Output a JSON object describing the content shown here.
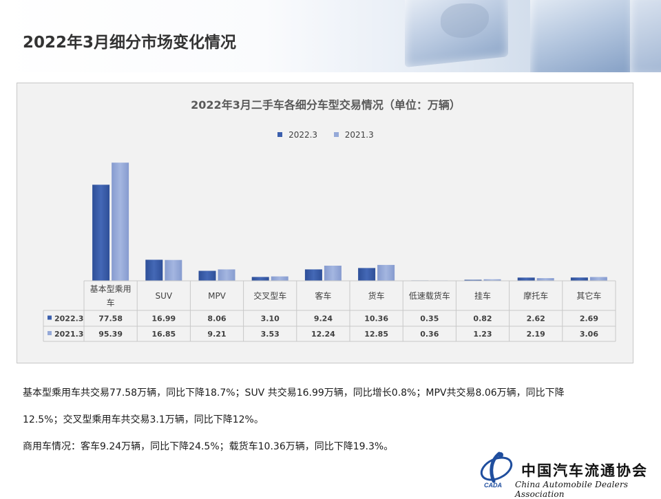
{
  "page": {
    "title": "2022年3月细分市场变化情况"
  },
  "colors": {
    "series_2022": "#3b5fad",
    "series_2021": "#95a9d8",
    "panel_bg": "#f2f2f2",
    "grid": "#c8c8c8"
  },
  "chart_data": {
    "type": "bar",
    "title": "2022年3月二手车各细分车型交易情况（单位：万辆）",
    "xlabel": "",
    "ylabel": "",
    "ylim": [
      0,
      100
    ],
    "grid": false,
    "legend_position": "top-center",
    "categories": [
      "基本型乘用车",
      "SUV",
      "MPV",
      "交叉型车",
      "客车",
      "货车",
      "低速载货车",
      "挂车",
      "摩托车",
      "其它车"
    ],
    "series": [
      {
        "name": "2022.3",
        "values": [
          "77.58",
          "16.99",
          "8.06",
          "3.10",
          "9.24",
          "10.36",
          "0.35",
          "0.82",
          "2.62",
          "2.69"
        ]
      },
      {
        "name": "2021.3",
        "values": [
          "95.39",
          "16.85",
          "9.21",
          "3.53",
          "12.24",
          "12.85",
          "0.36",
          "1.23",
          "2.19",
          "3.06"
        ]
      }
    ]
  },
  "footer": {
    "line1": "基本型乘用车共交易77.58万辆，同比下降18.7%；SUV 共交易16.99万辆，同比增长0.8%；MPV共交易8.06万辆，同比下降",
    "line2": "12.5%；交叉型乘用车共交易3.1万辆，同比下降12%。",
    "line3": "商用车情况：客车9.24万辆，同比下降24.5%；载货车10.36万辆，同比下降19.3%。"
  },
  "logo": {
    "name_cn": "中国汽车流通协会",
    "name_en": "China Automobile Dealers Association",
    "abbr": "CADA",
    "icon": "cada-emblem-icon"
  }
}
